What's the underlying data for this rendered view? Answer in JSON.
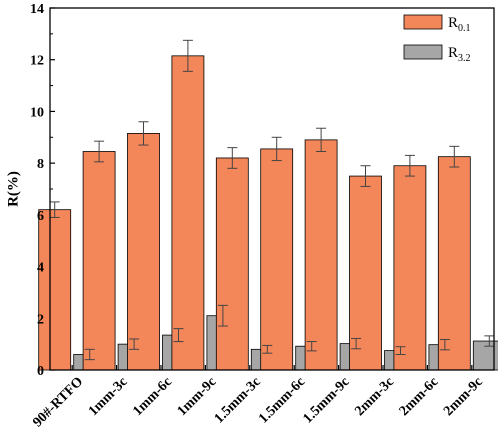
{
  "chart_data": {
    "type": "bar",
    "title": "",
    "xlabel": "",
    "ylabel": "R(%)",
    "ylim": [
      0,
      14
    ],
    "yticks": [
      "0",
      "2",
      "4",
      "6",
      "8",
      "10",
      "12",
      "14"
    ],
    "categories": [
      "90#-RTFO",
      "1mm-3c",
      "1mm-6c",
      "1mm-9c",
      "1.5mm-3c",
      "1.5mm-6c",
      "1.5mm-9c",
      "2mm-3c",
      "2mm-6c",
      "2mm-9c"
    ],
    "legend_position": "top-right",
    "series": [
      {
        "name": "R0.1",
        "name_main": "R",
        "name_sub": "0.1",
        "color": "#F4875A",
        "values": [
          6.2,
          8.45,
          9.15,
          12.15,
          8.2,
          8.55,
          8.9,
          7.5,
          7.9,
          8.25
        ],
        "errors": [
          0.3,
          0.4,
          0.45,
          0.6,
          0.4,
          0.45,
          0.45,
          0.4,
          0.4,
          0.4
        ]
      },
      {
        "name": "R3.2",
        "name_main": "R",
        "name_sub": "3.2",
        "color": "#A6A6A6",
        "values": [
          0.6,
          1.0,
          1.35,
          2.1,
          0.8,
          0.92,
          1.02,
          0.75,
          0.98,
          1.12
        ],
        "errors": [
          0.2,
          0.2,
          0.25,
          0.4,
          0.15,
          0.18,
          0.2,
          0.15,
          0.2,
          0.2
        ]
      }
    ]
  }
}
